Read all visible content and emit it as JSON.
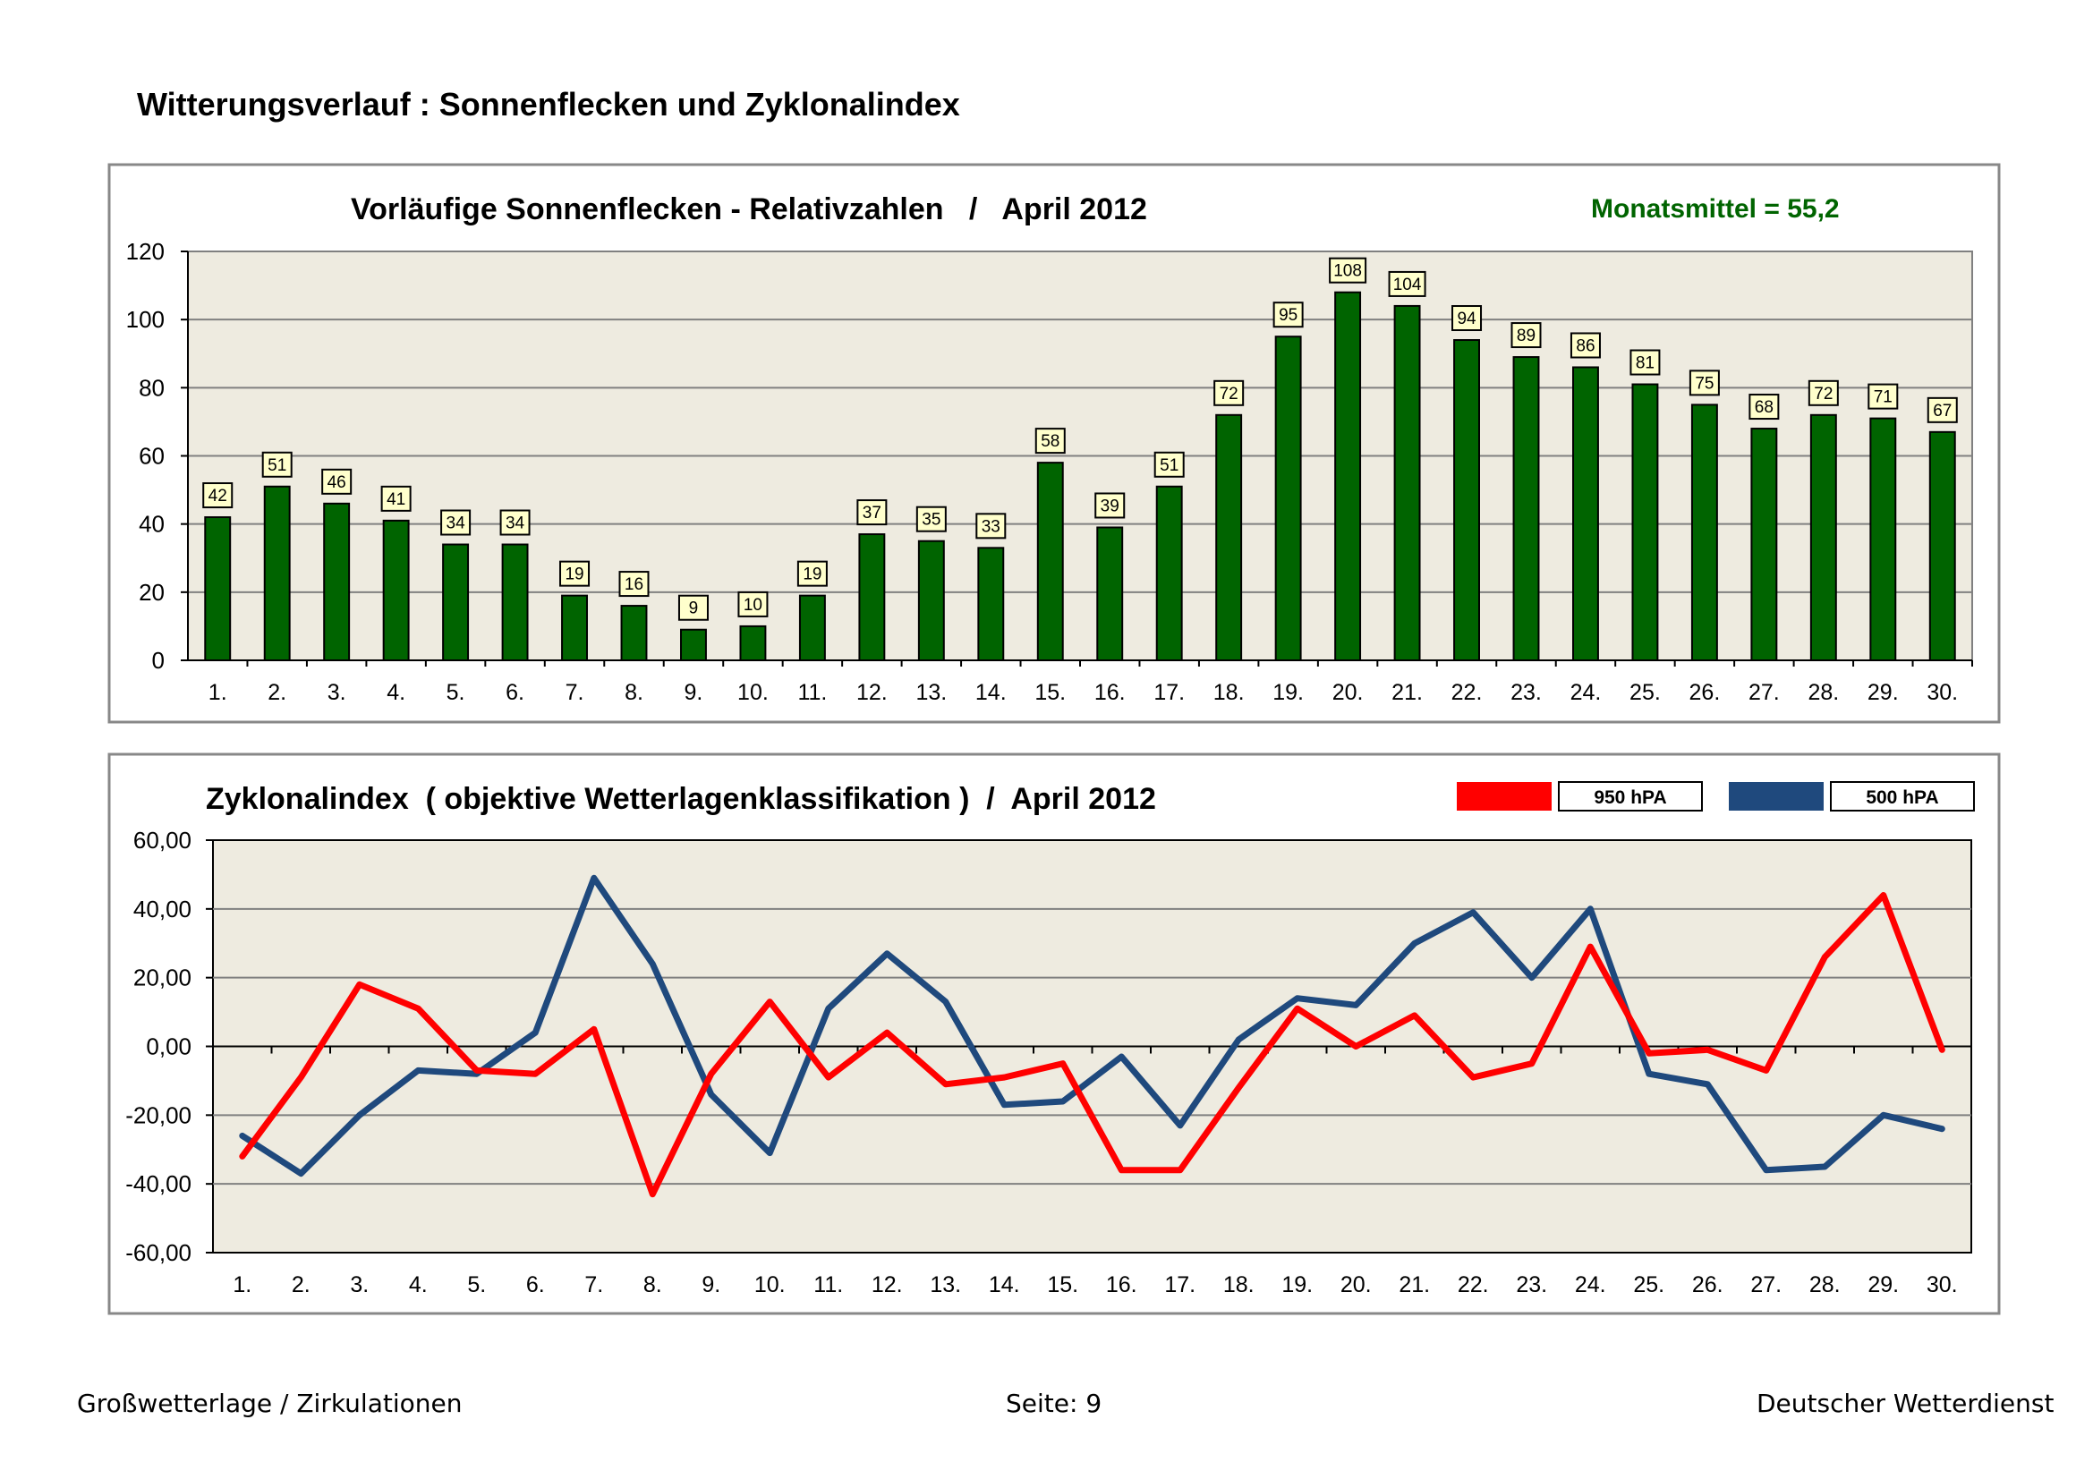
{
  "page": {
    "title": "Witterungsverlauf : Sonnenflecken und Zyklonalindex",
    "footer_left": "Großwetterlage / Zirkulationen",
    "footer_center": "Seite: 9",
    "footer_right": "Deutscher Wetterdienst"
  },
  "chart_data": [
    {
      "type": "bar",
      "title": "Vorläufige Sonnenflecken - Relativzahlen   /   April 2012",
      "annotation": "Monatsmittel = 55,2",
      "categories": [
        "1.",
        "2.",
        "3.",
        "4.",
        "5.",
        "6.",
        "7.",
        "8.",
        "9.",
        "10.",
        "11.",
        "12.",
        "13.",
        "14.",
        "15.",
        "16.",
        "17.",
        "18.",
        "19.",
        "20.",
        "21.",
        "22.",
        "23.",
        "24.",
        "25.",
        "26.",
        "27.",
        "28.",
        "29.",
        "30."
      ],
      "values": [
        42,
        51,
        46,
        41,
        34,
        34,
        19,
        16,
        9,
        10,
        19,
        37,
        35,
        33,
        58,
        39,
        51,
        72,
        95,
        108,
        104,
        94,
        89,
        86,
        81,
        75,
        68,
        72,
        71,
        67
      ],
      "ylim": [
        0,
        120
      ],
      "yticks": [
        "0",
        "20",
        "40",
        "60",
        "80",
        "100",
        "120"
      ],
      "xlabel": "",
      "ylabel": "",
      "colors": {
        "bar": "#006400",
        "label_bg": "#ffffcc",
        "annotation": "#006400",
        "plot_bg": "#eeebe0"
      }
    },
    {
      "type": "line",
      "title": "Zyklonalindex  ( objektive Wetterlagenklassifikation )  /  April 2012",
      "categories": [
        "1.",
        "2.",
        "3.",
        "4.",
        "5.",
        "6.",
        "7.",
        "8.",
        "9.",
        "10.",
        "11.",
        "12.",
        "13.",
        "14.",
        "15.",
        "16.",
        "17.",
        "18.",
        "19.",
        "20.",
        "21.",
        "22.",
        "23.",
        "24.",
        "25.",
        "26.",
        "27.",
        "28.",
        "29.",
        "30."
      ],
      "series": [
        {
          "name": "950 hPA",
          "color": "#ff0000",
          "values": [
            -32,
            -9,
            18,
            11,
            -7,
            -8,
            5,
            -43,
            -8,
            13,
            -9,
            4,
            -11,
            -9,
            -5,
            -36,
            -36,
            -12,
            11,
            0,
            9,
            -9,
            -5,
            29,
            -2,
            -1,
            -7,
            26,
            44,
            -1
          ]
        },
        {
          "name": "500 hPA",
          "color": "#1f497d",
          "values": [
            -26,
            -37,
            -20,
            -7,
            -8,
            4,
            49,
            24,
            -14,
            -31,
            11,
            27,
            13,
            -17,
            -16,
            -3,
            -23,
            2,
            14,
            12,
            30,
            39,
            20,
            40,
            -8,
            -11,
            -36,
            -35,
            -20,
            -24
          ]
        }
      ],
      "ylim": [
        -60,
        60
      ],
      "yticks": [
        "-60,00",
        "-40,00",
        "-20,00",
        "0,00",
        "20,00",
        "40,00",
        "60,00"
      ],
      "xlabel": "",
      "ylabel": "",
      "colors": {
        "plot_bg": "#eeebe0"
      }
    }
  ]
}
